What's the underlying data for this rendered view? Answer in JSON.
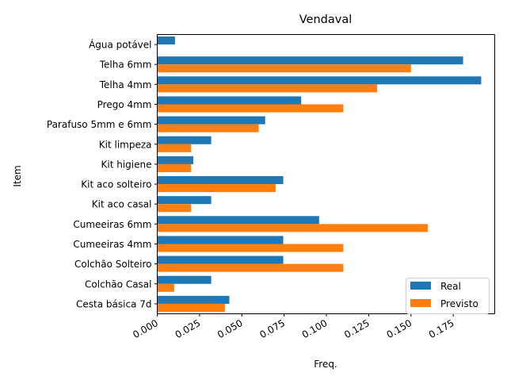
{
  "chart_data": {
    "type": "bar",
    "orientation": "horizontal",
    "title": "Vendaval",
    "xlabel": "Freq.",
    "ylabel": "Item",
    "categories": [
      "Água potável",
      "Telha 6mm",
      "Telha 4mm",
      "Prego 4mm",
      "Parafuso 5mm e 6mm",
      "Kit limpeza",
      "Kit higiene",
      "Kit aco solteiro",
      "Kit aco casal",
      "Cumeeiras 6mm",
      "Cumeeiras 4mm",
      "Colchão Solteiro",
      "Colchão Casal",
      "Cesta básica 7d"
    ],
    "series": [
      {
        "name": "Real",
        "color": "#1f77b4",
        "values": [
          0.0105,
          0.1808,
          0.1915,
          0.0851,
          0.0638,
          0.0319,
          0.0213,
          0.0745,
          0.0319,
          0.0957,
          0.0745,
          0.0745,
          0.0319,
          0.0426
        ]
      },
      {
        "name": "Previsto",
        "color": "#ff7f0e",
        "values": [
          0.0,
          0.15,
          0.13,
          0.11,
          0.06,
          0.02,
          0.02,
          0.07,
          0.02,
          0.16,
          0.11,
          0.11,
          0.01,
          0.04
        ]
      }
    ],
    "xlim": [
      0.0,
      0.1995
    ],
    "xticks": [
      "0.000",
      "0.025",
      "0.050",
      "0.075",
      "0.100",
      "0.125",
      "0.150",
      "0.175"
    ],
    "xtick_rotation_deg": 30,
    "grid": false,
    "legend": {
      "position": "lower right",
      "entries": [
        "Real",
        "Previsto"
      ]
    }
  }
}
